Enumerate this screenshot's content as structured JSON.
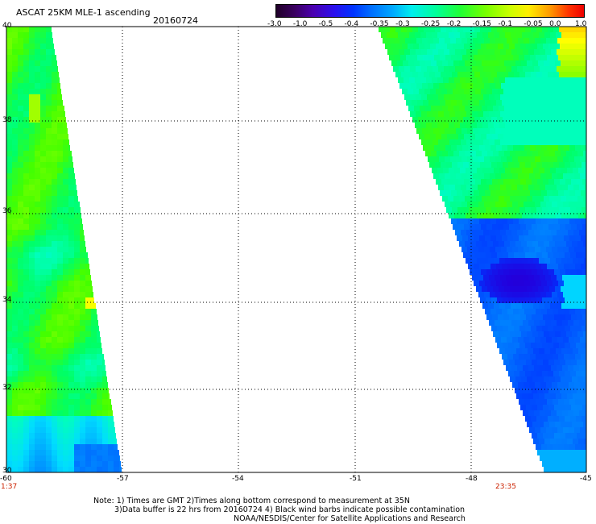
{
  "header": {
    "product": "ASCAT 25KM MLE-1 ascending",
    "date": "20160724"
  },
  "colorbar": {
    "ticks": [
      "-3.0",
      "-1.0",
      "-0.5",
      "-0.4",
      "-0.35",
      "-0.3",
      "-0.25",
      "-0.2",
      "-0.15",
      "-0.1",
      "-0.05",
      "0.0",
      "1.0"
    ],
    "colors": [
      "#2a0033",
      "#4b0082",
      "#2200dd",
      "#0033ff",
      "#0066ff",
      "#0099ff",
      "#00ddff",
      "#00ffbb",
      "#00ff66",
      "#44ff00",
      "#99ff00",
      "#ffff00",
      "#ff9900",
      "#ff3300",
      "#ee0000"
    ]
  },
  "map": {
    "lat_labels": [
      "40",
      "38",
      "36",
      "34",
      "32",
      "30"
    ],
    "lon_labels": [
      "-60",
      "-57",
      "-54",
      "-51",
      "-48",
      "-45"
    ],
    "time_left": "1:37",
    "time_right": "23:35"
  },
  "notes": {
    "line1": "Note: 1) Times are GMT 2)Times along bottom correspond to measurement at 35N",
    "line2": "3)Data buffer is 22 hrs from 20160724 4) Black wind barbs indicate possible contamination",
    "line3": "NOAA/NESDIS/Center for Satellite Applications and Research"
  }
}
